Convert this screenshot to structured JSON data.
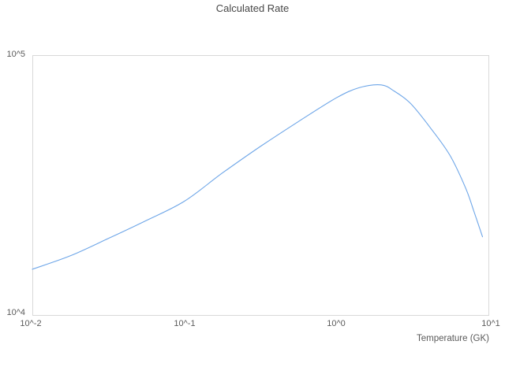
{
  "title": "Calculated Rate",
  "colors": {
    "line": "#6ea6e8",
    "frame": "#d9d9d9",
    "title_text": "#474747",
    "tick_text": "#5a5a5a",
    "background": "#ffffff"
  },
  "axes": {
    "x": {
      "label": "Temperature (GK)",
      "scale": "log",
      "tick_labels": [
        "10^-2",
        "10^-1",
        "10^0",
        "10^1"
      ]
    },
    "y": {
      "label": "",
      "scale": "log",
      "tick_labels": [
        "10^4",
        "10^5"
      ]
    }
  },
  "chart_data": {
    "type": "line",
    "title": "Calculated Rate",
    "xlabel": "Temperature (GK)",
    "ylabel": "",
    "xscale": "log",
    "yscale": "log",
    "xlim": [
      0.01,
      10
    ],
    "ylim": [
      10000,
      100000
    ],
    "grid": false,
    "legend": false,
    "series": [
      {
        "name": "Calculated Rate",
        "x": [
          0.01,
          0.0178,
          0.0316,
          0.0562,
          0.1,
          0.178,
          0.316,
          0.562,
          1.0,
          1.41,
          1.97,
          2.41,
          3.07,
          4.15,
          5.59,
          7.08,
          8.0,
          9.14
        ],
        "y": [
          15000,
          16900,
          19700,
          23100,
          27400,
          35200,
          44500,
          55500,
          68500,
          74900,
          76800,
          72600,
          65200,
          52500,
          41100,
          30800,
          25200,
          20000
        ]
      }
    ]
  }
}
